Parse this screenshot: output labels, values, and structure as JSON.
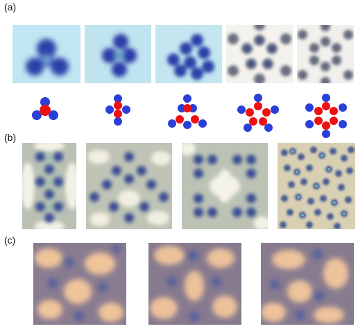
{
  "panels": [
    {
      "label": "(a)"
    },
    {
      "label": "(b)"
    },
    {
      "label": "(c)"
    }
  ],
  "colors": {
    "background": "#ffffff",
    "dot_blue": "#2a3fd8",
    "dot_red": "#ee1111",
    "a_bg": "#bfe6f2",
    "b_bg": "#ccd4c2",
    "c_bg": "#e9c9a3"
  }
}
